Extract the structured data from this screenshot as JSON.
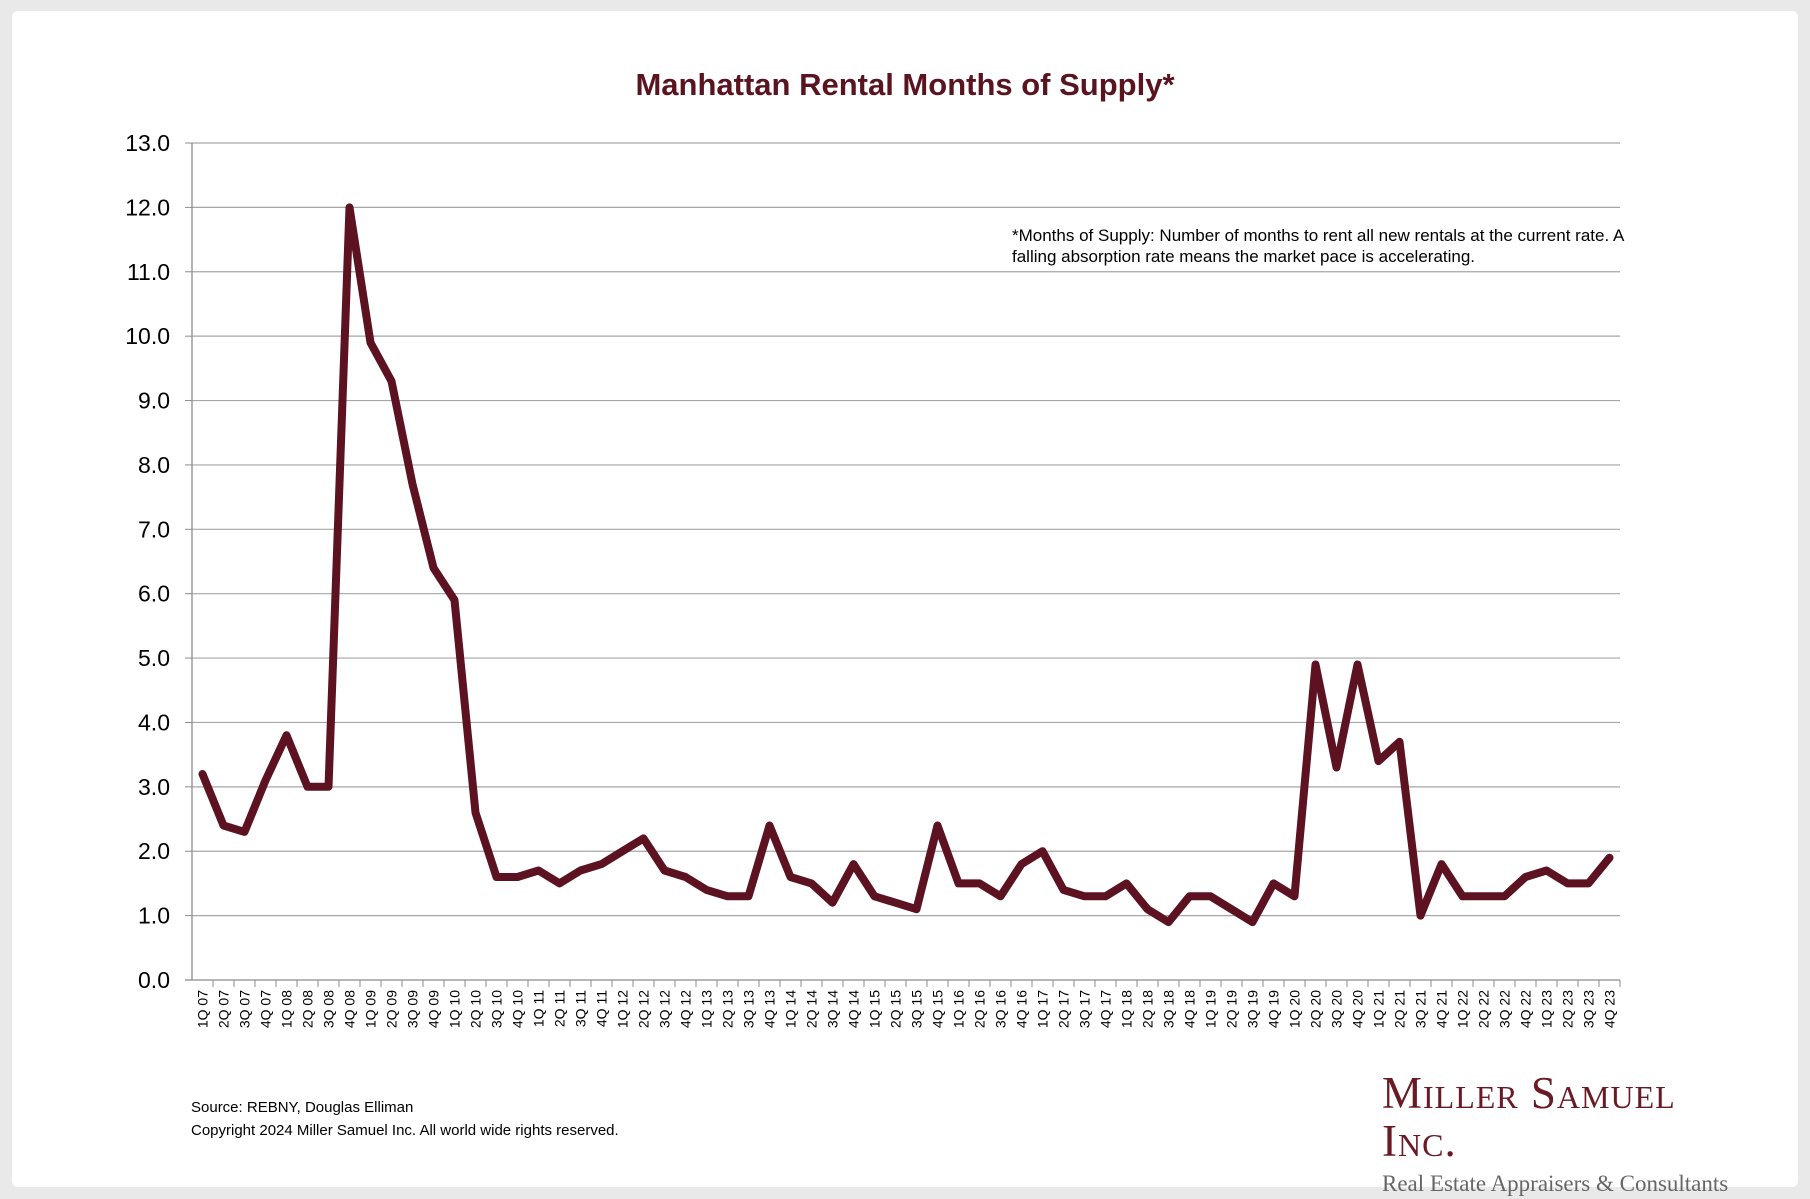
{
  "colors": {
    "line": "#5c1221",
    "title": "#5a1420",
    "grid": "#a6a6a6",
    "logo": "#6a1a24",
    "tagline": "#666666"
  },
  "chart_data": {
    "type": "line",
    "title": "Manhattan Rental Months of Supply*",
    "xlabel": "",
    "ylabel": "",
    "ylim": [
      0,
      13
    ],
    "yticks": [
      "0.0",
      "1.0",
      "2.0",
      "3.0",
      "4.0",
      "5.0",
      "6.0",
      "7.0",
      "8.0",
      "9.0",
      "10.0",
      "11.0",
      "12.0",
      "13.0"
    ],
    "grid": true,
    "categories": [
      "1Q 07",
      "2Q 07",
      "3Q 07",
      "4Q 07",
      "1Q 08",
      "2Q 08",
      "3Q 08",
      "4Q 08",
      "1Q 09",
      "2Q 09",
      "3Q 09",
      "4Q 09",
      "1Q 10",
      "2Q 10",
      "3Q 10",
      "4Q 10",
      "1Q 11",
      "2Q 11",
      "3Q 11",
      "4Q 11",
      "1Q 12",
      "2Q 12",
      "3Q 12",
      "4Q 12",
      "1Q 13",
      "2Q 13",
      "3Q 13",
      "4Q 13",
      "1Q 14",
      "2Q 14",
      "3Q 14",
      "4Q 14",
      "1Q 15",
      "2Q 15",
      "3Q 15",
      "4Q 15",
      "1Q 16",
      "2Q 16",
      "3Q 16",
      "4Q 16",
      "1Q 17",
      "2Q 17",
      "3Q 17",
      "4Q 17",
      "1Q 18",
      "2Q 18",
      "3Q 18",
      "4Q 18",
      "1Q 19",
      "2Q 19",
      "3Q 19",
      "4Q 19",
      "1Q 20",
      "2Q 20",
      "3Q 20",
      "4Q 20",
      "1Q 21",
      "2Q 21",
      "3Q 21",
      "4Q 21",
      "1Q 22",
      "2Q 22",
      "3Q 22",
      "4Q 22",
      "1Q 23",
      "2Q 23",
      "3Q 23",
      "4Q 23"
    ],
    "series": [
      {
        "values": [
          3.2,
          2.4,
          2.3,
          3.1,
          3.8,
          3.0,
          3.0,
          12.0,
          9.9,
          9.3,
          7.7,
          6.4,
          5.9,
          2.6,
          1.6,
          1.6,
          1.7,
          1.5,
          1.7,
          1.8,
          2.0,
          2.2,
          1.7,
          1.6,
          1.4,
          1.3,
          1.3,
          2.4,
          1.6,
          1.5,
          1.2,
          1.8,
          1.3,
          1.2,
          1.1,
          2.4,
          1.5,
          1.5,
          1.3,
          1.8,
          2.0,
          1.4,
          1.3,
          1.3,
          1.5,
          1.1,
          0.9,
          1.3,
          1.3,
          1.1,
          0.9,
          1.5,
          1.3,
          4.9,
          3.3,
          4.9,
          3.4,
          3.7,
          1.0,
          1.8,
          1.3,
          1.3,
          1.3,
          1.6,
          1.7,
          1.5,
          1.5,
          1.9
        ]
      }
    ],
    "annotation": "*Months of Supply: Number of months to rent all new rentals at the current rate. A falling absorption rate means the market pace is accelerating."
  },
  "footer": {
    "source": "Source: REBNY, Douglas Elliman",
    "copyright": "Copyright 2024 Miller Samuel Inc.  All world wide rights reserved."
  },
  "logo": {
    "name": "Miller Samuel Inc.",
    "tagline": "Real Estate Appraisers & Consultants"
  }
}
